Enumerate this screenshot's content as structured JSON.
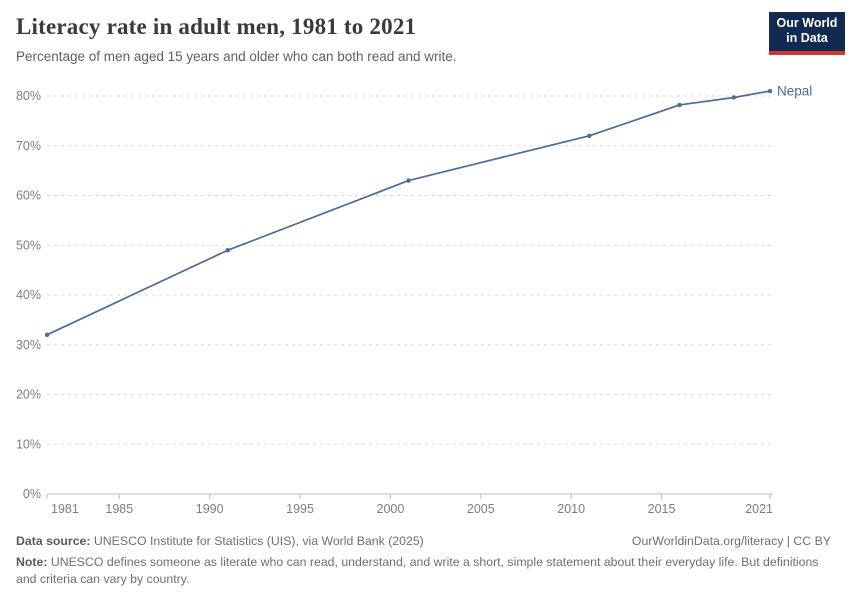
{
  "header": {
    "title": "Literacy rate in adult men, 1981 to 2021",
    "subtitle": "Percentage of men aged 15 years and older who can both read and write."
  },
  "logo": {
    "line1": "Our World",
    "line2": "in Data",
    "bg_color": "#112a51",
    "accent_color": "#cf3830",
    "text_color": "#ffffff"
  },
  "chart_data": {
    "type": "line",
    "title": "Literacy rate in adult men, 1981 to 2021",
    "xlabel": "",
    "ylabel": "",
    "xlim": [
      1981,
      2021
    ],
    "ylim": [
      0,
      85
    ],
    "x_ticks": [
      1981,
      1985,
      1990,
      1995,
      2000,
      2005,
      2010,
      2015,
      2021
    ],
    "y_ticks": [
      0,
      10,
      20,
      30,
      40,
      50,
      60,
      70,
      80
    ],
    "y_tick_suffix": "%",
    "grid": "horizontal-dashed",
    "legend_position": "end-of-line-label",
    "series": [
      {
        "name": "Nepal",
        "color": "#4C6A9C",
        "points": [
          {
            "x": 1981,
            "y": 32
          },
          {
            "x": 1991,
            "y": 49
          },
          {
            "x": 2001,
            "y": 63
          },
          {
            "x": 2011,
            "y": 72
          },
          {
            "x": 2016,
            "y": 78.2
          },
          {
            "x": 2019,
            "y": 79.7
          },
          {
            "x": 2021,
            "y": 81
          }
        ]
      }
    ],
    "style_colors": {
      "gridline": "#d8d8d8",
      "axis": "#bdbdbd",
      "tick_label": "#7e7e7e"
    }
  },
  "footer": {
    "source_label": "Data source:",
    "source_text": " UNESCO Institute for Statistics (UIS), via World Bank (2025)",
    "link": "OurWorldinData.org/literacy | CC BY",
    "note_label": "Note:",
    "note_text": " UNESCO defines someone as literate who can read, understand, and write a short, simple statement about their everyday life. But definitions and criteria can vary by country."
  }
}
